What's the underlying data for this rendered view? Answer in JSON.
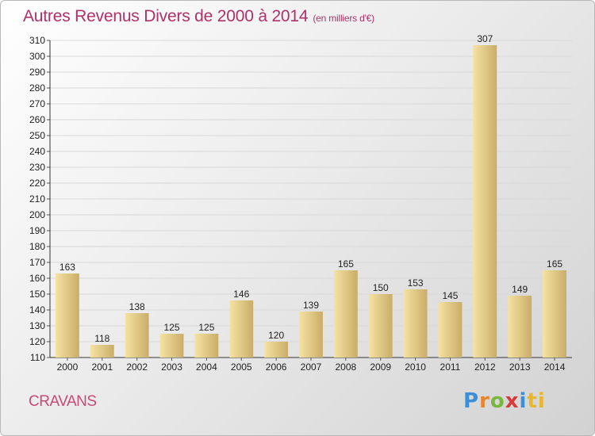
{
  "header": {
    "title": "Autres Revenus Divers de 2000 à 2014",
    "subtitle": "(en milliers d'€)"
  },
  "footer": {
    "commune": "CRAVANS",
    "logo": "Proxiti"
  },
  "colors": {
    "title": "#b0306a",
    "bar_light": "#f6e2a2",
    "bar_dark": "#c9ad68",
    "grid": "#d8d8d8"
  },
  "chart_data": {
    "type": "bar",
    "title": "Autres Revenus Divers de 2000 à 2014",
    "subtitle": "(en milliers d'€)",
    "categories": [
      "2000",
      "2001",
      "2002",
      "2003",
      "2004",
      "2005",
      "2006",
      "2007",
      "2008",
      "2009",
      "2010",
      "2011",
      "2012",
      "2013",
      "2014"
    ],
    "values": [
      163,
      118,
      138,
      125,
      125,
      146,
      120,
      139,
      165,
      150,
      153,
      145,
      307,
      149,
      165
    ],
    "ylim": [
      110,
      310
    ],
    "yticks": [
      110,
      120,
      130,
      140,
      150,
      160,
      170,
      180,
      190,
      200,
      210,
      220,
      230,
      240,
      250,
      260,
      270,
      280,
      290,
      300,
      310
    ],
    "grid": true,
    "data_labels": true
  }
}
